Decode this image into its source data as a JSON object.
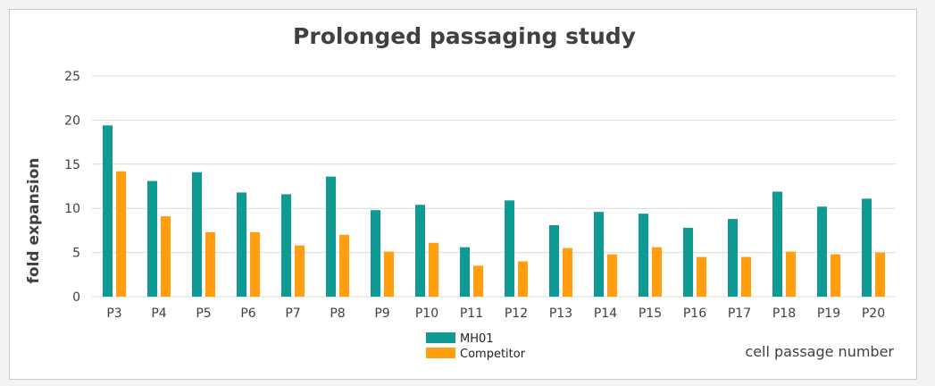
{
  "chart_data": {
    "type": "bar",
    "title": "Prolonged passaging study",
    "xlabel": "cell passage number",
    "ylabel": "fold expansion",
    "ylim": [
      0,
      25
    ],
    "yticks": [
      0,
      5,
      10,
      15,
      20,
      25
    ],
    "grid": true,
    "legend_position": "bottom-center",
    "categories": [
      "P3",
      "P4",
      "P5",
      "P6",
      "P7",
      "P8",
      "P9",
      "P10",
      "P11",
      "P12",
      "P13",
      "P14",
      "P15",
      "P16",
      "P17",
      "P18",
      "P19",
      "P20"
    ],
    "series": [
      {
        "name": "MH01",
        "color": "#0f9a94",
        "values": [
          19.4,
          13.1,
          14.1,
          11.8,
          11.6,
          13.6,
          9.8,
          10.4,
          5.6,
          10.9,
          8.1,
          9.6,
          9.4,
          7.8,
          8.8,
          11.9,
          10.2,
          11.1
        ]
      },
      {
        "name": "Competitor",
        "color": "#ff9f0f",
        "values": [
          14.2,
          9.1,
          7.3,
          7.3,
          5.8,
          7.0,
          5.1,
          6.1,
          3.5,
          4.0,
          5.5,
          4.8,
          5.6,
          4.5,
          4.5,
          5.1,
          4.8,
          5.0
        ]
      }
    ]
  }
}
